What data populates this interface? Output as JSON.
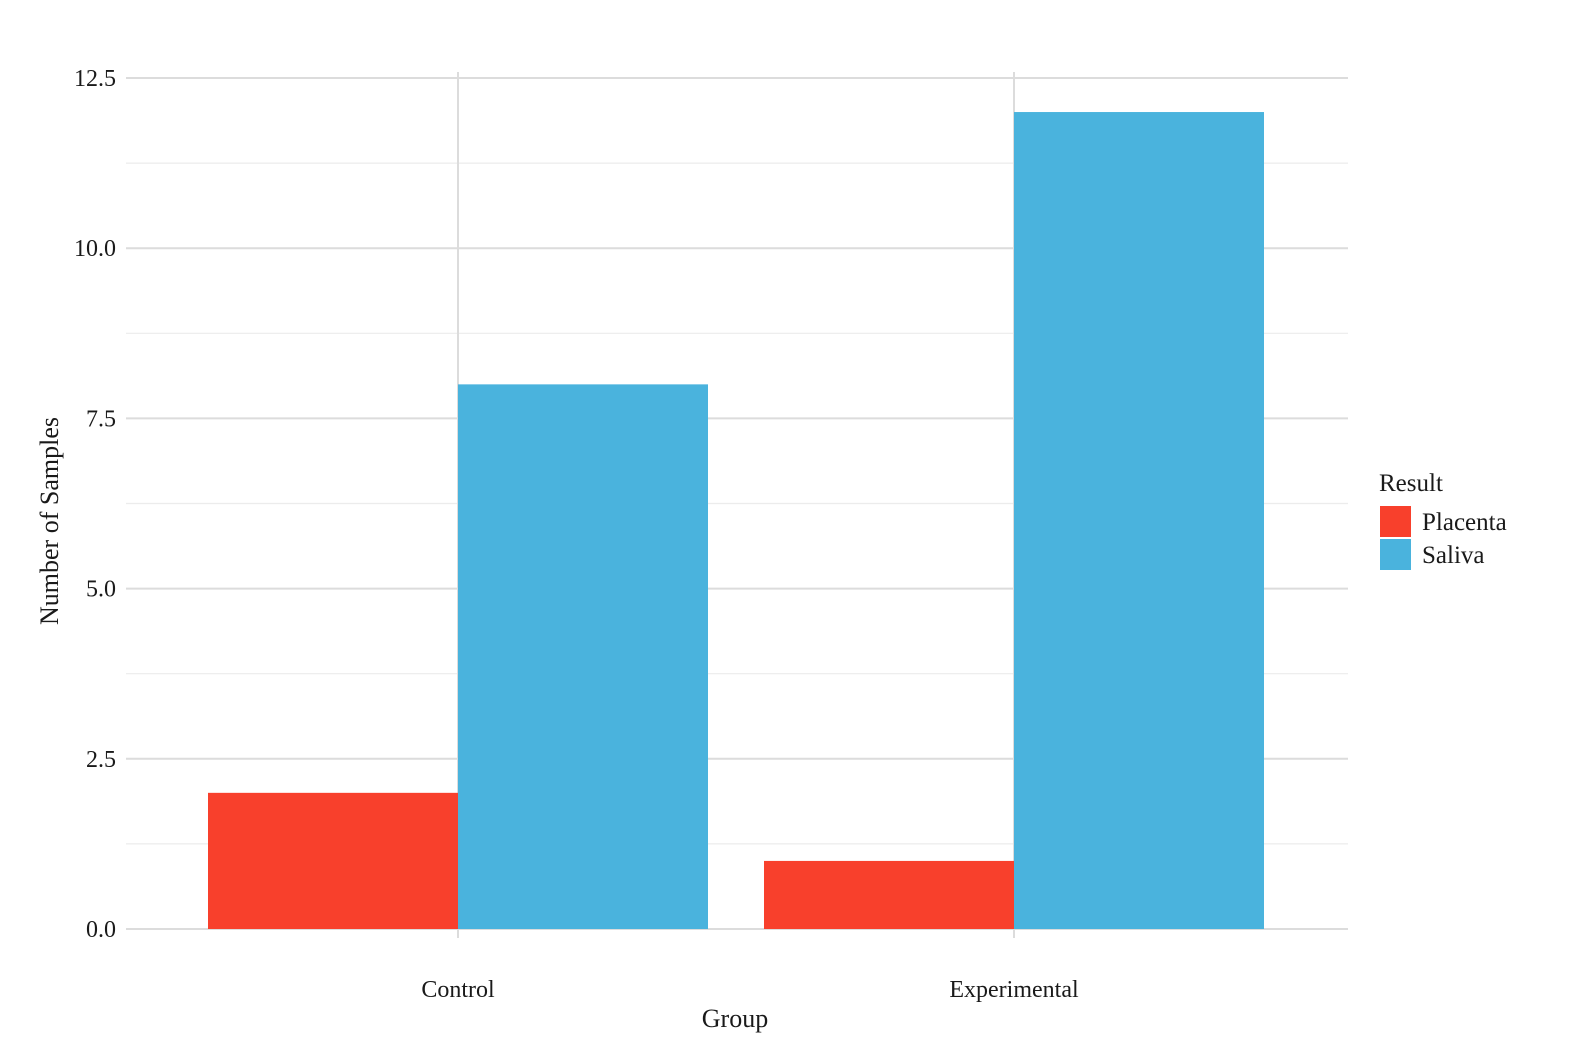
{
  "chart_data": {
    "type": "bar",
    "title": "",
    "xlabel": "Group",
    "ylabel": "Number of Samples",
    "categories": [
      "Control",
      "Experimental"
    ],
    "series": [
      {
        "name": "Placenta",
        "values": [
          2,
          1
        ],
        "color": "#f8402c"
      },
      {
        "name": "Saliva",
        "values": [
          8,
          12
        ],
        "color": "#4ab3dd"
      }
    ],
    "ylim": [
      0,
      12.5
    ],
    "yticks": [
      0.0,
      2.5,
      5.0,
      7.5,
      10.0,
      12.5
    ],
    "ytick_labels": [
      "0.0",
      "2.5",
      "5.0",
      "7.5",
      "10.0",
      "12.5"
    ],
    "grid": true,
    "legend": {
      "title": "Result",
      "placement": "right"
    }
  }
}
